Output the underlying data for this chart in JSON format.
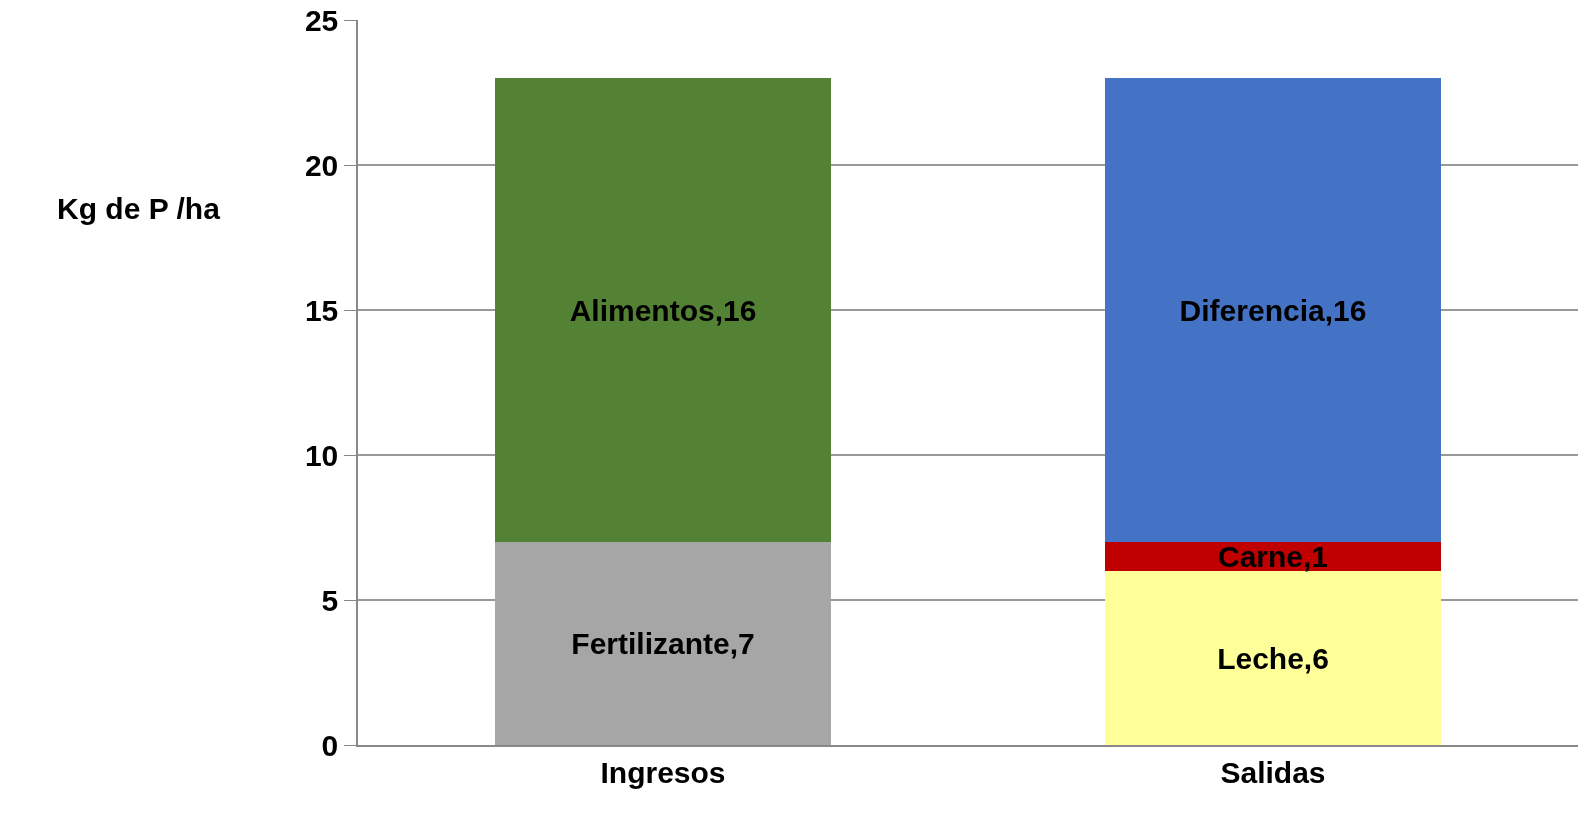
{
  "chart_data": {
    "type": "bar",
    "stacked": true,
    "ylabel": "Kg de P /ha",
    "categories": [
      "Ingresos",
      "Salidas"
    ],
    "ylim": [
      0,
      25
    ],
    "yticks": [
      0,
      5,
      10,
      15,
      20,
      25
    ],
    "grid": "y",
    "legend": false,
    "series": [
      {
        "color": "#a6a6a6",
        "values": [
          7,
          null
        ],
        "value_labels": [
          "Fertilizante,7",
          null
        ]
      },
      {
        "color": "#548235",
        "values": [
          16,
          null
        ],
        "value_labels": [
          "Alimentos,16",
          null
        ]
      },
      {
        "color": "#ffff99",
        "values": [
          null,
          6
        ],
        "value_labels": [
          null,
          "Leche,6"
        ]
      },
      {
        "color": "#c00000",
        "values": [
          null,
          1
        ],
        "value_labels": [
          null,
          "Carne,1"
        ]
      },
      {
        "color": "#4472c4",
        "values": [
          null,
          16
        ],
        "value_labels": [
          null,
          "Diferencia,16"
        ]
      }
    ]
  }
}
